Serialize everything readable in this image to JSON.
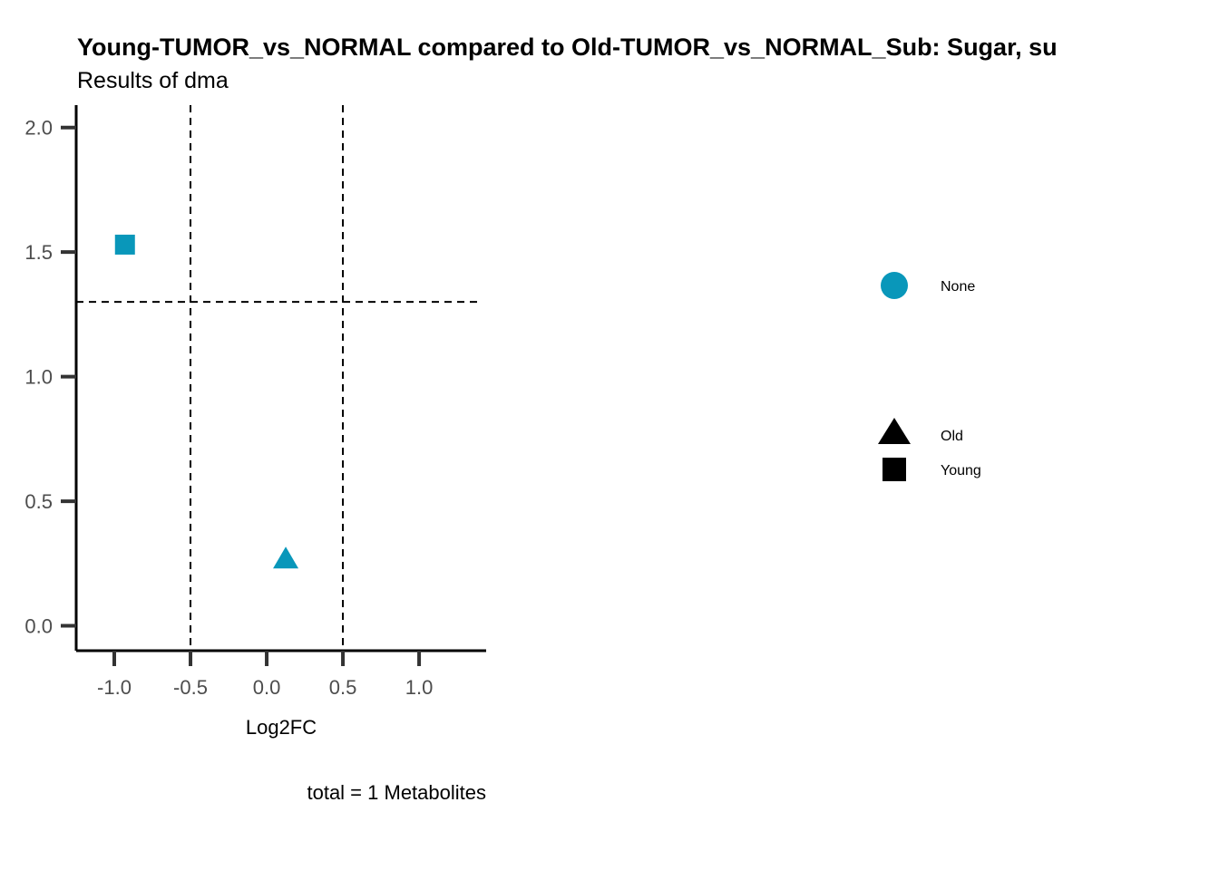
{
  "chart_data": {
    "type": "scatter",
    "title": "Young-TUMOR_vs_NORMAL compared to Old-TUMOR_vs_NORMAL_Sub: Sugar, su",
    "subtitle": "Results of dma",
    "xlabel": "Log2FC",
    "ylabel": "",
    "caption": "total = 1 Metabolites",
    "xlim": [
      -1.25,
      1.44
    ],
    "ylim": [
      -0.1,
      2.09
    ],
    "x_ticks": [
      -1.0,
      -0.5,
      0.0,
      0.5,
      1.0
    ],
    "x_tick_labels": [
      "-1.0",
      "-0.5",
      "0.0",
      "0.5",
      "1.0"
    ],
    "y_ticks": [
      0.0,
      0.5,
      1.0,
      1.5,
      2.0
    ],
    "y_tick_labels": [
      "0.0",
      "0.5",
      "1.0",
      "1.5",
      "2.0"
    ],
    "grid": false,
    "threshold_lines": {
      "x": [
        -0.5,
        0.5
      ],
      "y": [
        1.3
      ]
    },
    "points": [
      {
        "x": -0.93,
        "y": 1.53,
        "shape": "square",
        "group": "Young",
        "color_group": "None"
      },
      {
        "x": 0.125,
        "y": 0.27,
        "shape": "triangle",
        "group": "Old",
        "color_group": "None"
      }
    ],
    "legend": {
      "placement": "right",
      "color": [
        {
          "label": "None",
          "color": "#0997BA"
        }
      ],
      "shape": [
        {
          "label": "Old",
          "shape": "triangle"
        },
        {
          "label": "Young",
          "shape": "square"
        }
      ]
    },
    "point_color": "#0997BA"
  }
}
